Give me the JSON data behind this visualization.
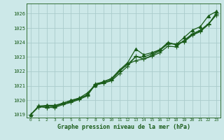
{
  "title": "Graphe pression niveau de la mer (hPa)",
  "bg_color": "#cce8e8",
  "grid_color": "#aacccc",
  "line_color": "#1a5c1a",
  "marker_color": "#1a5c1a",
  "xlim": [
    -0.5,
    23.5
  ],
  "ylim": [
    1018.8,
    1026.7
  ],
  "yticks": [
    1019,
    1020,
    1021,
    1022,
    1023,
    1024,
    1025,
    1026
  ],
  "xticks": [
    0,
    1,
    2,
    3,
    4,
    5,
    6,
    7,
    8,
    9,
    10,
    11,
    12,
    13,
    14,
    15,
    16,
    17,
    18,
    19,
    20,
    21,
    22,
    23
  ],
  "series": [
    [
      1019.0,
      1019.6,
      1019.65,
      1019.65,
      1019.8,
      1020.0,
      1020.15,
      1020.5,
      1021.05,
      1021.3,
      1021.5,
      1022.1,
      1022.6,
      1023.55,
      1023.15,
      1023.3,
      1023.5,
      1024.0,
      1023.85,
      1024.35,
      1024.85,
      1025.1,
      1025.85,
      1026.15
    ],
    [
      1019.0,
      1019.55,
      1019.6,
      1019.6,
      1019.75,
      1019.9,
      1020.1,
      1020.38,
      1021.05,
      1021.18,
      1021.35,
      1021.85,
      1022.35,
      1023.05,
      1022.85,
      1023.05,
      1023.3,
      1023.75,
      1023.7,
      1024.15,
      1024.6,
      1024.85,
      1025.3,
      1025.9
    ],
    [
      1019.0,
      1019.55,
      1019.5,
      1019.5,
      1019.7,
      1019.85,
      1020.05,
      1020.3,
      1021.1,
      1021.2,
      1021.4,
      1022.0,
      1022.5,
      1022.75,
      1022.85,
      1023.1,
      1023.45,
      1023.9,
      1023.9,
      1024.05,
      1024.5,
      1024.75,
      1025.25,
      1025.95
    ],
    [
      1019.0,
      1019.6,
      1019.5,
      1019.55,
      1019.82,
      1019.95,
      1020.15,
      1020.35,
      1021.15,
      1021.25,
      1021.5,
      1022.05,
      1022.5,
      1023.0,
      1023.0,
      1023.2,
      1023.5,
      1024.0,
      1023.85,
      1024.1,
      1024.55,
      1024.8,
      1025.25,
      1026.05
    ]
  ]
}
